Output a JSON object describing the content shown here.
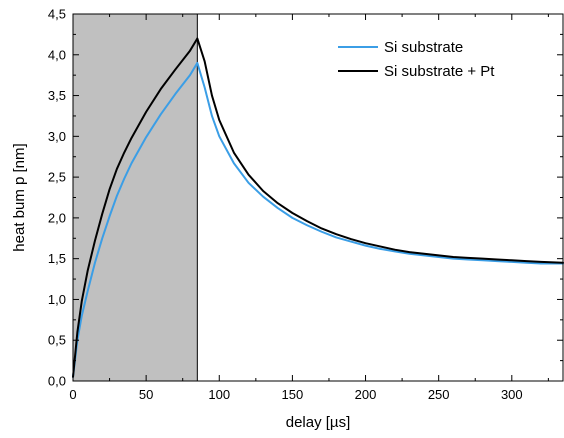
{
  "chart_data": {
    "type": "line",
    "xlabel": "delay [µs]",
    "ylabel": "heat bum p [nm]",
    "xlim": [
      0,
      335
    ],
    "ylim": [
      0,
      4.5
    ],
    "x_ticks": [
      0,
      50,
      100,
      150,
      200,
      250,
      300
    ],
    "x_tick_labels": [
      "0",
      "50",
      "100",
      "150",
      "200",
      "250",
      "300"
    ],
    "y_ticks": [
      0,
      0.5,
      1.0,
      1.5,
      2.0,
      2.5,
      3.0,
      3.5,
      4.0,
      4.5
    ],
    "y_tick_labels": [
      "0,0",
      "0,5",
      "1,0",
      "1,5",
      "2,0",
      "2,5",
      "3,0",
      "3,5",
      "4,0",
      "4,5"
    ],
    "shaded_region": {
      "x": [
        0,
        85
      ],
      "color": "#c0c0c0"
    },
    "grid": false,
    "legend_position": "top-right",
    "series": [
      {
        "name": "Si substrate",
        "color": "#3b9ee6",
        "x": [
          0,
          3,
          6,
          10,
          15,
          20,
          25,
          30,
          35,
          40,
          50,
          60,
          70,
          80,
          85,
          90,
          95,
          100,
          110,
          120,
          130,
          140,
          150,
          160,
          170,
          180,
          190,
          200,
          210,
          220,
          230,
          240,
          250,
          260,
          270,
          280,
          290,
          300,
          310,
          320,
          335
        ],
        "y": [
          0.05,
          0.5,
          0.8,
          1.1,
          1.45,
          1.75,
          2.02,
          2.27,
          2.48,
          2.67,
          2.99,
          3.27,
          3.52,
          3.75,
          3.9,
          3.6,
          3.25,
          3.0,
          2.67,
          2.43,
          2.26,
          2.12,
          2.0,
          1.91,
          1.83,
          1.76,
          1.71,
          1.66,
          1.62,
          1.59,
          1.56,
          1.54,
          1.52,
          1.5,
          1.49,
          1.48,
          1.47,
          1.46,
          1.45,
          1.44,
          1.44
        ]
      },
      {
        "name": "Si substrate + Pt",
        "color": "#000000",
        "x": [
          0,
          3,
          6,
          10,
          15,
          20,
          25,
          30,
          35,
          40,
          50,
          60,
          70,
          80,
          85,
          90,
          95,
          100,
          110,
          120,
          130,
          140,
          150,
          160,
          170,
          180,
          190,
          200,
          210,
          220,
          230,
          240,
          250,
          260,
          270,
          280,
          290,
          300,
          310,
          320,
          335
        ],
        "y": [
          0.05,
          0.6,
          0.98,
          1.35,
          1.72,
          2.05,
          2.35,
          2.6,
          2.8,
          2.98,
          3.3,
          3.58,
          3.82,
          4.05,
          4.2,
          3.92,
          3.5,
          3.2,
          2.8,
          2.53,
          2.33,
          2.18,
          2.06,
          1.96,
          1.87,
          1.8,
          1.74,
          1.69,
          1.65,
          1.61,
          1.58,
          1.56,
          1.54,
          1.52,
          1.51,
          1.5,
          1.49,
          1.48,
          1.47,
          1.46,
          1.45
        ]
      }
    ]
  }
}
